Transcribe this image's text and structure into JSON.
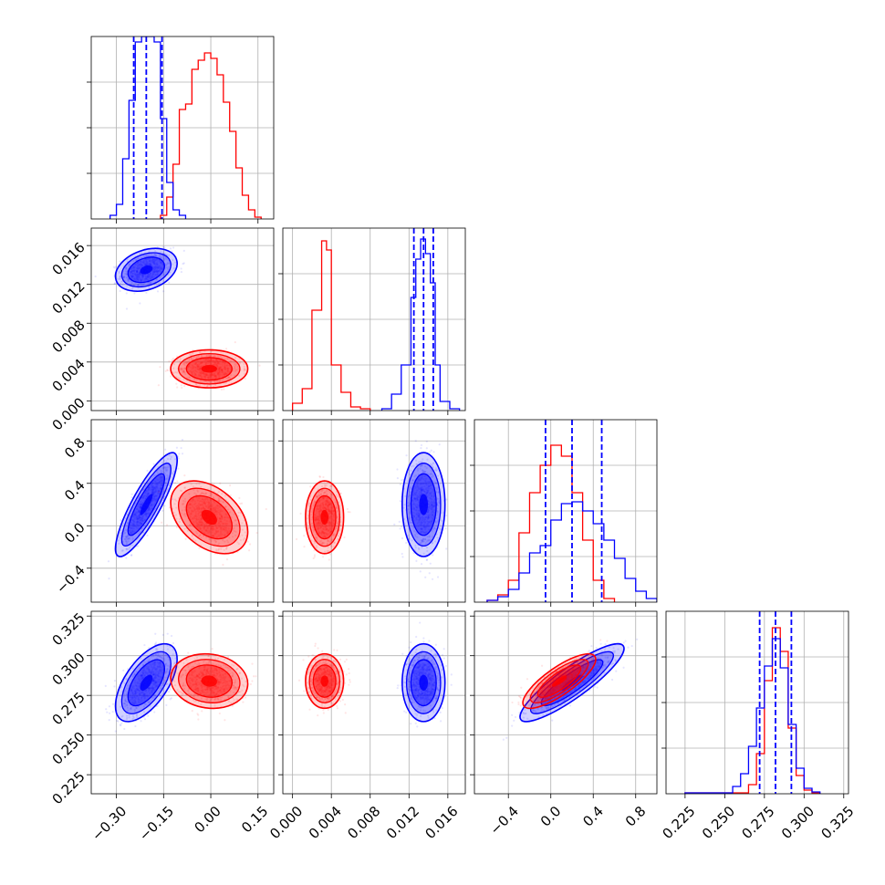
{
  "chart_data": {
    "type": "corner",
    "grid": true,
    "colors": {
      "series_a": "#0000ff",
      "series_b": "#ff0000"
    },
    "parameters": [
      {
        "range": [
          -0.38,
          0.2
        ],
        "ticks": [
          -0.3,
          -0.15,
          0.0,
          0.15
        ],
        "tick_labels": [
          "−0.30",
          "−0.15",
          "0.00",
          "0.15"
        ]
      },
      {
        "range": [
          -0.001,
          0.0178
        ],
        "ticks": [
          0.0,
          0.004,
          0.008,
          0.012,
          0.016
        ],
        "tick_labels": [
          "0.000",
          "0.004",
          "0.008",
          "0.012",
          "0.016"
        ]
      },
      {
        "range": [
          -0.72,
          1.0
        ],
        "ticks": [
          -0.4,
          0.0,
          0.4,
          0.8
        ],
        "tick_labels": [
          "−0.4",
          "0.0",
          "0.4",
          "0.8"
        ]
      },
      {
        "range": [
          0.213,
          0.328
        ],
        "ticks": [
          0.225,
          0.25,
          0.275,
          0.3,
          0.325
        ],
        "tick_labels": [
          "0.225",
          "0.250",
          "0.275",
          "0.300",
          "0.325"
        ]
      }
    ],
    "series": [
      {
        "color": "#0000ff",
        "mean": [
          -0.205,
          0.0135,
          0.2,
          0.283
        ],
        "sd": [
          0.04,
          0.0009,
          0.2,
          0.01
        ],
        "quantiles": [
          [
            -0.245,
            -0.205,
            -0.155
          ],
          [
            0.0125,
            0.0135,
            0.0145
          ],
          [
            -0.05,
            0.2,
            0.48
          ],
          [
            0.272,
            0.282,
            0.292
          ]
        ],
        "histograms": [
          {
            "edges": [
              -0.32,
              -0.3,
              -0.28,
              -0.26,
              -0.24,
              -0.22,
              -0.2,
              -0.18,
              -0.16,
              -0.14,
              -0.12,
              -0.1,
              -0.08
            ],
            "counts": [
              0.02,
              0.08,
              0.33,
              0.65,
              0.97,
              1.0,
              1.0,
              0.97,
              0.55,
              0.2,
              0.05,
              0.02
            ]
          },
          {
            "edges": [
              0.0092,
              0.0102,
              0.0112,
              0.0122,
              0.0127,
              0.0132,
              0.0137,
              0.0142,
              0.0147,
              0.0152,
              0.0162,
              0.0172
            ],
            "counts": [
              0.01,
              0.09,
              0.25,
              0.62,
              0.83,
              0.94,
              0.86,
              0.7,
              0.25,
              0.05,
              0.01
            ]
          },
          {
            "edges": [
              -0.6,
              -0.5,
              -0.4,
              -0.3,
              -0.2,
              -0.1,
              0.0,
              0.1,
              0.2,
              0.3,
              0.4,
              0.5,
              0.6,
              0.7,
              0.8,
              0.9,
              1.0
            ],
            "counts": [
              0.01,
              0.03,
              0.07,
              0.16,
              0.27,
              0.31,
              0.45,
              0.54,
              0.55,
              0.5,
              0.43,
              0.34,
              0.24,
              0.13,
              0.06,
              0.02
            ]
          },
          {
            "edges": [
              0.225,
              0.25,
              0.255,
              0.26,
              0.265,
              0.27,
              0.275,
              0.28,
              0.285,
              0.29,
              0.295,
              0.3,
              0.305,
              0.31
            ],
            "counts": [
              0.005,
              0.005,
              0.04,
              0.11,
              0.26,
              0.47,
              0.7,
              0.85,
              0.69,
              0.38,
              0.14,
              0.03,
              0.01
            ]
          }
        ]
      },
      {
        "color": "#ff0000",
        "mean": [
          -0.005,
          0.0033,
          0.08,
          0.284
        ],
        "sd": [
          0.05,
          0.0008,
          0.14,
          0.007
        ],
        "histograms": [
          {
            "edges": [
              -0.16,
              -0.14,
              -0.12,
              -0.1,
              -0.08,
              -0.06,
              -0.04,
              -0.02,
              0.0,
              0.02,
              0.04,
              0.06,
              0.08,
              0.1,
              0.12,
              0.14,
              0.16
            ],
            "counts": [
              0.02,
              0.12,
              0.3,
              0.6,
              0.63,
              0.82,
              0.87,
              0.91,
              0.88,
              0.79,
              0.64,
              0.48,
              0.28,
              0.13,
              0.05,
              0.01
            ]
          },
          {
            "edges": [
              0.0,
              0.001,
              0.002,
              0.003,
              0.0035,
              0.004,
              0.005,
              0.006,
              0.007,
              0.008
            ],
            "counts": [
              0.04,
              0.12,
              0.55,
              0.93,
              0.88,
              0.25,
              0.1,
              0.02,
              0.01
            ]
          },
          {
            "edges": [
              -0.6,
              -0.5,
              -0.4,
              -0.3,
              -0.2,
              -0.1,
              0.0,
              0.1,
              0.2,
              0.3,
              0.4,
              0.5,
              0.6
            ],
            "counts": [
              0.01,
              0.04,
              0.12,
              0.38,
              0.6,
              0.75,
              0.86,
              0.8,
              0.6,
              0.34,
              0.12,
              0.02
            ]
          },
          {
            "edges": [
              0.225,
              0.265,
              0.27,
              0.275,
              0.28,
              0.285,
              0.29,
              0.295,
              0.3,
              0.305,
              0.31
            ],
            "counts": [
              0.005,
              0.05,
              0.22,
              0.62,
              0.91,
              0.78,
              0.36,
              0.1,
              0.02,
              0.005
            ]
          }
        ]
      }
    ],
    "correlations": {
      "series_a": {
        "0-1": 0.3,
        "0-2": 0.85,
        "0-3": 0.6,
        "1-2": 0.0,
        "1-3": 0.0,
        "2-3": 0.88
      },
      "series_b": {
        "0-1": 0.0,
        "0-2": -0.4,
        "0-3": -0.1,
        "1-2": 0.0,
        "1-3": 0.0,
        "2-3": 0.8
      }
    }
  }
}
